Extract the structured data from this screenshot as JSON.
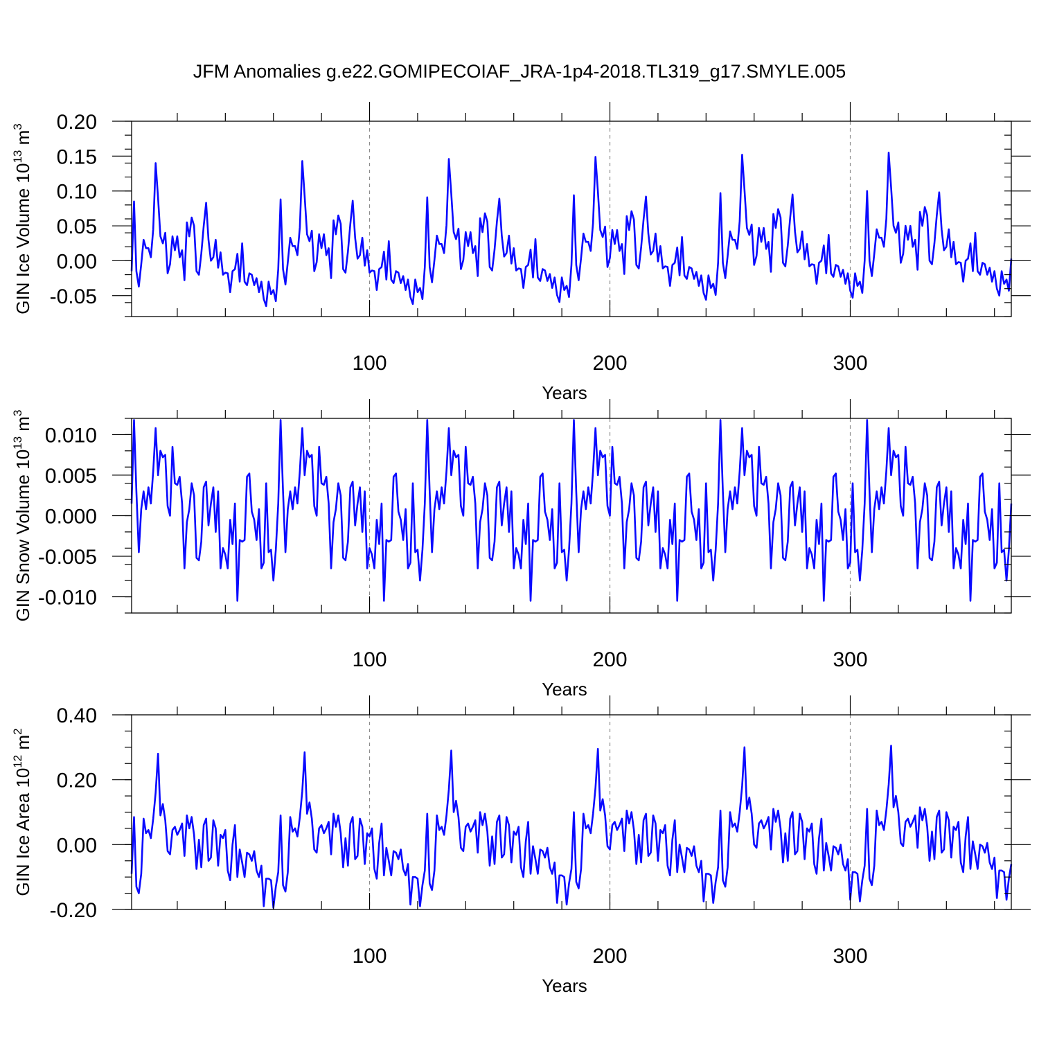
{
  "title": "JFM Anomalies g.e22.GOMIPECOIAF_JRA-1p4-2018.TL319_g17.SMYLE.005",
  "chart_data": [
    {
      "type": "line",
      "ylabel": "GIN Ice Volume 10",
      "ylabel_exponent": "13",
      "ylabel_unit": " m",
      "ylabel_unit_exponent": "3",
      "xlabel": "Years",
      "xlim": [
        1,
        367
      ],
      "ylim": [
        -0.08,
        0.2
      ],
      "yticks": [
        -0.05,
        0.0,
        0.05,
        0.1,
        0.15,
        0.2
      ],
      "ytick_labels": [
        "-0.05",
        "0.00",
        "0.05",
        "0.10",
        "0.15",
        "0.20"
      ],
      "xticks": [
        100,
        200,
        300
      ],
      "xtick_labels": [
        "100",
        "200",
        "300"
      ],
      "grid_x": true,
      "color": "#0a0aff",
      "series": [
        {
          "name": "GIN Ice Volume",
          "cycle_length": 61,
          "cycle_growth": 0.003,
          "base_cycle": [
            -0.015,
            0.085,
            -0.015,
            -0.037,
            -0.005,
            0.03,
            0.018,
            0.018,
            0.005,
            0.045,
            0.14,
            0.09,
            0.035,
            0.025,
            0.04,
            -0.018,
            -0.005,
            0.035,
            0.015,
            0.035,
            0.005,
            0.015,
            -0.028,
            0.055,
            0.035,
            0.062,
            0.05,
            -0.015,
            -0.02,
            0.01,
            0.05,
            0.083,
            0.03,
            0.0,
            0.005,
            0.03,
            -0.01,
            0.012,
            -0.02,
            -0.017,
            -0.018,
            -0.045,
            -0.015,
            -0.012,
            0.01,
            -0.03,
            0.025,
            -0.03,
            -0.035,
            -0.018,
            -0.02,
            -0.035,
            -0.025,
            -0.045,
            -0.03,
            -0.055,
            -0.065,
            -0.03,
            -0.048,
            -0.042,
            -0.058
          ]
        }
      ]
    },
    {
      "type": "line",
      "ylabel": "GIN Snow Volume 10",
      "ylabel_exponent": "13",
      "ylabel_unit": " m",
      "ylabel_unit_exponent": "3",
      "xlabel": "Years",
      "xlim": [
        1,
        367
      ],
      "ylim": [
        -0.012,
        0.012
      ],
      "yticks": [
        -0.01,
        -0.005,
        0.0,
        0.005,
        0.01
      ],
      "ytick_labels": [
        "-0.010",
        "-0.005",
        "0.000",
        "0.005",
        "0.010"
      ],
      "xticks": [
        100,
        200,
        300
      ],
      "xtick_labels": [
        "100",
        "200",
        "300"
      ],
      "grid_x": true,
      "color": "#0a0aff",
      "series": [
        {
          "name": "GIN Snow Volume",
          "cycle_length": 61,
          "cycle_growth": 0.0,
          "base_cycle": [
            0.0015,
            0.0118,
            0.003,
            -0.0045,
            0.0008,
            0.003,
            0.0008,
            0.0035,
            0.0015,
            0.0055,
            0.0108,
            0.005,
            0.008,
            0.0072,
            0.0075,
            0.0012,
            0.0,
            0.0085,
            0.004,
            0.0038,
            0.0048,
            0.0015,
            -0.0065,
            -0.0008,
            0.0008,
            0.004,
            0.0025,
            -0.0052,
            -0.0055,
            -0.0032,
            0.0035,
            0.0042,
            -0.0012,
            0.0015,
            0.0035,
            -0.002,
            0.003,
            -0.0065,
            -0.004,
            -0.0048,
            -0.0065,
            -0.0005,
            -0.0035,
            0.0015,
            -0.0105,
            -0.003,
            -0.0032,
            -0.003,
            0.0048,
            0.0052,
            0.0005,
            -0.0005,
            -0.003,
            0.0008,
            -0.0065,
            -0.0058,
            0.004,
            -0.0045,
            -0.0042,
            -0.008,
            -0.0042
          ]
        }
      ]
    },
    {
      "type": "line",
      "ylabel": "GIN Ice Area 10",
      "ylabel_exponent": "12",
      "ylabel_unit": " m",
      "ylabel_unit_exponent": "2",
      "xlabel": "Years",
      "xlim": [
        1,
        367
      ],
      "ylim": [
        -0.2,
        0.4
      ],
      "yticks": [
        -0.2,
        0.0,
        0.2,
        0.4
      ],
      "ytick_labels": [
        "-0.20",
        "0.00",
        "0.20",
        "0.40"
      ],
      "xticks": [
        100,
        200,
        300
      ],
      "xtick_labels": [
        "100",
        "200",
        "300"
      ],
      "grid_x": true,
      "color": "#0a0aff",
      "series": [
        {
          "name": "GIN Ice Area",
          "cycle_length": 61,
          "cycle_growth": 0.005,
          "base_cycle": [
            -0.09,
            0.085,
            -0.13,
            -0.15,
            -0.09,
            0.08,
            0.035,
            0.045,
            0.02,
            0.08,
            0.16,
            0.28,
            0.09,
            0.125,
            0.075,
            -0.02,
            -0.03,
            0.045,
            0.055,
            0.03,
            0.045,
            0.065,
            -0.035,
            0.09,
            0.05,
            0.085,
            0.03,
            -0.075,
            0.015,
            -0.07,
            0.06,
            0.08,
            -0.05,
            -0.04,
            0.075,
            0.05,
            -0.065,
            0.03,
            0.02,
            0.045,
            -0.08,
            -0.11,
            0.0,
            0.06,
            -0.1,
            -0.015,
            -0.055,
            -0.1,
            -0.025,
            -0.03,
            -0.05,
            -0.02,
            -0.08,
            -0.1,
            -0.065,
            -0.19,
            -0.105,
            -0.105,
            -0.11,
            -0.195,
            -0.13
          ]
        }
      ]
    }
  ]
}
